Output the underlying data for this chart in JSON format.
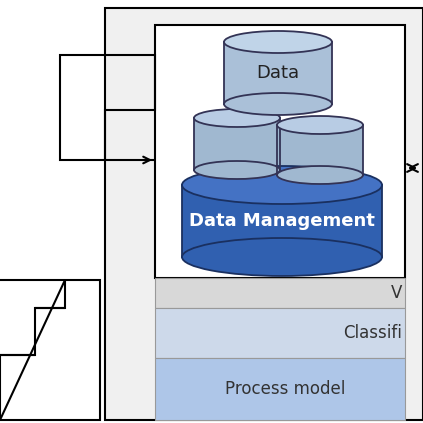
{
  "bg_color": "#ffffff",
  "layer_colors": {
    "process_model": "#aec6e8",
    "classification": "#cdd9ea",
    "v_layer": "#d8d8d8"
  },
  "cylinder_small": {
    "top_color": "#b8cce4",
    "side_color": "#a0b8d0",
    "edge_color": "#333355"
  },
  "cylinder_data": {
    "top_color": "#c0d4e8",
    "side_color": "#aac0d8",
    "edge_color": "#333355"
  },
  "cylinder_dm": {
    "top_color": "#4472c4",
    "side_color": "#3060b0",
    "edge_color": "#1a3060"
  },
  "labels": {
    "data": "Data",
    "data_mgmt": "Data Management",
    "v_layer": "V",
    "classification": "Classifi",
    "process_model": "Process model"
  },
  "line_color": "#000000",
  "line_width": 1.5
}
